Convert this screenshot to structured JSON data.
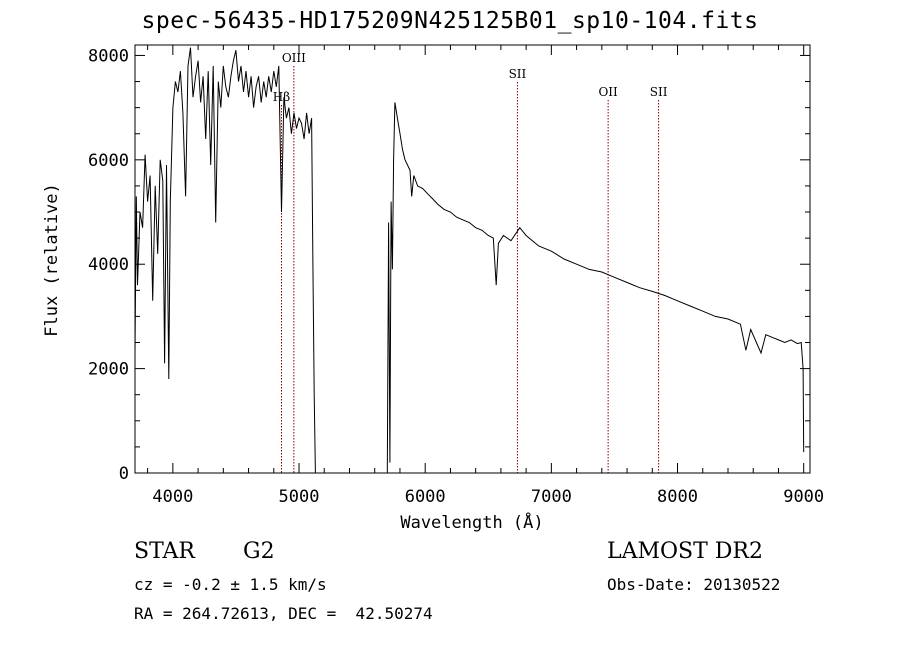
{
  "title": "spec-56435-HD175209N425125B01_sp10-104.fits",
  "chart_data": {
    "type": "line",
    "xlabel": "Wavelength (Å)",
    "ylabel": "Flux (relative)",
    "xlim": [
      3700,
      9050
    ],
    "ylim": [
      0,
      8200
    ],
    "x_ticks": [
      4000,
      5000,
      6000,
      7000,
      8000,
      9000
    ],
    "y_ticks": [
      0,
      2000,
      4000,
      6000,
      8000
    ],
    "grid": false,
    "series": [
      {
        "x": [
          3700,
          3710,
          3720,
          3740,
          3760,
          3780,
          3800,
          3820,
          3840,
          3860,
          3880,
          3900,
          3920,
          3935,
          3950,
          3968,
          3980,
          4000,
          4020,
          4040,
          4060,
          4080,
          4101,
          4120,
          4140,
          4160,
          4180,
          4200,
          4220,
          4240,
          4260,
          4280,
          4300,
          4320,
          4340,
          4360,
          4380,
          4400,
          4420,
          4440,
          4460,
          4480,
          4500,
          4520,
          4540,
          4560,
          4580,
          4600,
          4620,
          4640,
          4660,
          4680,
          4700,
          4720,
          4740,
          4760,
          4780,
          4800,
          4820,
          4840,
          4861,
          4880,
          4900,
          4920,
          4940,
          4960,
          4980,
          5000,
          5020,
          5040,
          5060,
          5080,
          5100,
          5110,
          5120,
          5130,
          5700,
          5710,
          5720,
          5730,
          5740,
          5750,
          5760,
          5780,
          5800,
          5820,
          5840,
          5860,
          5880,
          5893,
          5910,
          5940,
          5980,
          6020,
          6060,
          6100,
          6150,
          6200,
          6250,
          6300,
          6350,
          6400,
          6450,
          6500,
          6540,
          6563,
          6580,
          6620,
          6680,
          6750,
          6800,
          6900,
          7000,
          7100,
          7200,
          7300,
          7400,
          7500,
          7600,
          7700,
          7800,
          7900,
          8000,
          8100,
          8200,
          8300,
          8400,
          8498,
          8542,
          8580,
          8662,
          8700,
          8750,
          8800,
          8850,
          8900,
          8950,
          8980,
          8995,
          9000
        ],
        "y": [
          2300,
          5300,
          3600,
          5000,
          4700,
          6100,
          5200,
          5700,
          3300,
          5500,
          4200,
          6000,
          5600,
          2100,
          5900,
          1800,
          5200,
          7000,
          7500,
          7300,
          7700,
          6900,
          5300,
          7800,
          8150,
          7200,
          7600,
          7900,
          7100,
          7600,
          6400,
          7700,
          5900,
          7800,
          4800,
          7500,
          7000,
          7800,
          7400,
          7200,
          7600,
          7900,
          8100,
          7500,
          7800,
          7300,
          7700,
          7200,
          7600,
          7000,
          7400,
          7600,
          7100,
          7500,
          7200,
          7600,
          7300,
          7700,
          7400,
          7800,
          5000,
          7200,
          6800,
          7000,
          6500,
          6900,
          6600,
          6800,
          6700,
          6400,
          6900,
          6500,
          6800,
          4000,
          1500,
          0,
          0,
          4800,
          200,
          5200,
          3900,
          6000,
          7100,
          6800,
          6500,
          6200,
          6000,
          5900,
          5800,
          5300,
          5700,
          5500,
          5450,
          5350,
          5250,
          5150,
          5050,
          5000,
          4900,
          4850,
          4800,
          4700,
          4650,
          4550,
          4500,
          3600,
          4400,
          4550,
          4450,
          4700,
          4550,
          4350,
          4250,
          4100,
          4000,
          3900,
          3850,
          3750,
          3650,
          3550,
          3480,
          3400,
          3300,
          3200,
          3100,
          3000,
          2950,
          2850,
          2350,
          2750,
          2300,
          2650,
          2600,
          2550,
          2500,
          2550,
          2480,
          2500,
          2000,
          400
        ]
      }
    ],
    "lines": [
      {
        "label": "Hβ",
        "x": 4861
      },
      {
        "label": "OIII",
        "x": 4959
      },
      {
        "label": "SII",
        "x": 6731
      },
      {
        "label": "OII",
        "x": 7450
      },
      {
        "label": "SII",
        "x": 7850
      }
    ],
    "line_color": "#8b0000",
    "curve_color": "#000000"
  },
  "info": {
    "object_type": "STAR",
    "subclass": "G2",
    "cz": "cz = -0.2 ± 1.5 km/s",
    "coords": "RA = 264.72613, DEC =  42.50274",
    "survey": "LAMOST DR2",
    "obs_date": "Obs-Date: 20130522"
  }
}
